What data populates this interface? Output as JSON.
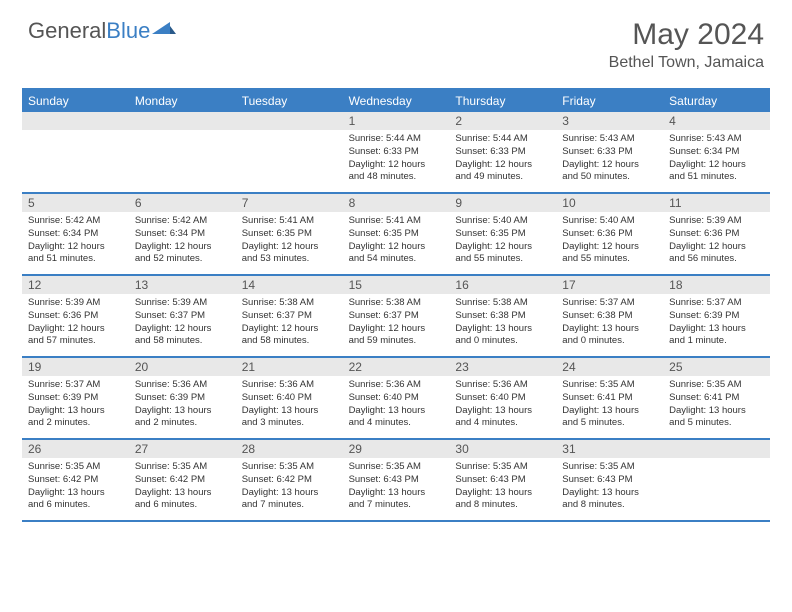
{
  "logo": {
    "text1": "General",
    "text2": "Blue"
  },
  "title": "May 2024",
  "location": "Bethel Town, Jamaica",
  "colors": {
    "accent": "#3b7fc4",
    "header_text": "#555555",
    "daynum_bg": "#e8e8e8",
    "text": "#333333",
    "background": "#ffffff"
  },
  "dow": [
    "Sunday",
    "Monday",
    "Tuesday",
    "Wednesday",
    "Thursday",
    "Friday",
    "Saturday"
  ],
  "weeks": [
    [
      {
        "n": "",
        "sr": "",
        "ss": "",
        "dl": ""
      },
      {
        "n": "",
        "sr": "",
        "ss": "",
        "dl": ""
      },
      {
        "n": "",
        "sr": "",
        "ss": "",
        "dl": ""
      },
      {
        "n": "1",
        "sr": "5:44 AM",
        "ss": "6:33 PM",
        "dl": "12 hours and 48 minutes."
      },
      {
        "n": "2",
        "sr": "5:44 AM",
        "ss": "6:33 PM",
        "dl": "12 hours and 49 minutes."
      },
      {
        "n": "3",
        "sr": "5:43 AM",
        "ss": "6:33 PM",
        "dl": "12 hours and 50 minutes."
      },
      {
        "n": "4",
        "sr": "5:43 AM",
        "ss": "6:34 PM",
        "dl": "12 hours and 51 minutes."
      }
    ],
    [
      {
        "n": "5",
        "sr": "5:42 AM",
        "ss": "6:34 PM",
        "dl": "12 hours and 51 minutes."
      },
      {
        "n": "6",
        "sr": "5:42 AM",
        "ss": "6:34 PM",
        "dl": "12 hours and 52 minutes."
      },
      {
        "n": "7",
        "sr": "5:41 AM",
        "ss": "6:35 PM",
        "dl": "12 hours and 53 minutes."
      },
      {
        "n": "8",
        "sr": "5:41 AM",
        "ss": "6:35 PM",
        "dl": "12 hours and 54 minutes."
      },
      {
        "n": "9",
        "sr": "5:40 AM",
        "ss": "6:35 PM",
        "dl": "12 hours and 55 minutes."
      },
      {
        "n": "10",
        "sr": "5:40 AM",
        "ss": "6:36 PM",
        "dl": "12 hours and 55 minutes."
      },
      {
        "n": "11",
        "sr": "5:39 AM",
        "ss": "6:36 PM",
        "dl": "12 hours and 56 minutes."
      }
    ],
    [
      {
        "n": "12",
        "sr": "5:39 AM",
        "ss": "6:36 PM",
        "dl": "12 hours and 57 minutes."
      },
      {
        "n": "13",
        "sr": "5:39 AM",
        "ss": "6:37 PM",
        "dl": "12 hours and 58 minutes."
      },
      {
        "n": "14",
        "sr": "5:38 AM",
        "ss": "6:37 PM",
        "dl": "12 hours and 58 minutes."
      },
      {
        "n": "15",
        "sr": "5:38 AM",
        "ss": "6:37 PM",
        "dl": "12 hours and 59 minutes."
      },
      {
        "n": "16",
        "sr": "5:38 AM",
        "ss": "6:38 PM",
        "dl": "13 hours and 0 minutes."
      },
      {
        "n": "17",
        "sr": "5:37 AM",
        "ss": "6:38 PM",
        "dl": "13 hours and 0 minutes."
      },
      {
        "n": "18",
        "sr": "5:37 AM",
        "ss": "6:39 PM",
        "dl": "13 hours and 1 minute."
      }
    ],
    [
      {
        "n": "19",
        "sr": "5:37 AM",
        "ss": "6:39 PM",
        "dl": "13 hours and 2 minutes."
      },
      {
        "n": "20",
        "sr": "5:36 AM",
        "ss": "6:39 PM",
        "dl": "13 hours and 2 minutes."
      },
      {
        "n": "21",
        "sr": "5:36 AM",
        "ss": "6:40 PM",
        "dl": "13 hours and 3 minutes."
      },
      {
        "n": "22",
        "sr": "5:36 AM",
        "ss": "6:40 PM",
        "dl": "13 hours and 4 minutes."
      },
      {
        "n": "23",
        "sr": "5:36 AM",
        "ss": "6:40 PM",
        "dl": "13 hours and 4 minutes."
      },
      {
        "n": "24",
        "sr": "5:35 AM",
        "ss": "6:41 PM",
        "dl": "13 hours and 5 minutes."
      },
      {
        "n": "25",
        "sr": "5:35 AM",
        "ss": "6:41 PM",
        "dl": "13 hours and 5 minutes."
      }
    ],
    [
      {
        "n": "26",
        "sr": "5:35 AM",
        "ss": "6:42 PM",
        "dl": "13 hours and 6 minutes."
      },
      {
        "n": "27",
        "sr": "5:35 AM",
        "ss": "6:42 PM",
        "dl": "13 hours and 6 minutes."
      },
      {
        "n": "28",
        "sr": "5:35 AM",
        "ss": "6:42 PM",
        "dl": "13 hours and 7 minutes."
      },
      {
        "n": "29",
        "sr": "5:35 AM",
        "ss": "6:43 PM",
        "dl": "13 hours and 7 minutes."
      },
      {
        "n": "30",
        "sr": "5:35 AM",
        "ss": "6:43 PM",
        "dl": "13 hours and 8 minutes."
      },
      {
        "n": "31",
        "sr": "5:35 AM",
        "ss": "6:43 PM",
        "dl": "13 hours and 8 minutes."
      },
      {
        "n": "",
        "sr": "",
        "ss": "",
        "dl": ""
      }
    ]
  ],
  "labels": {
    "sunrise": "Sunrise:",
    "sunset": "Sunset:",
    "daylight": "Daylight:"
  }
}
